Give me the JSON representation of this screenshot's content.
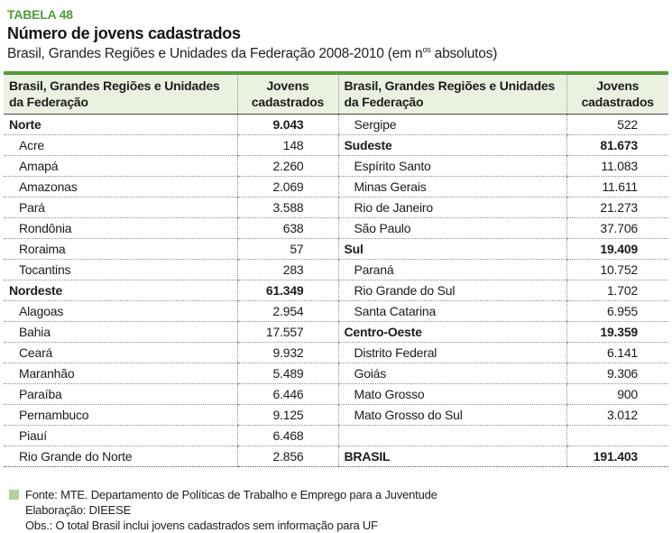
{
  "title": {
    "label": "TABELA 48",
    "heading": "Número de jovens cadastrados",
    "subtitle_prefix": "Brasil, Grandes Regiões e Unidades da Federação 2008-2010 (em n",
    "subtitle_sup": "os",
    "subtitle_suffix": " absolutos)"
  },
  "table": {
    "header": {
      "region_label": "Brasil, Grandes Regiões e Unidades da Federação",
      "value_label": "Jovens cadastrados"
    },
    "left": {
      "rows": [
        {
          "label": "Norte",
          "value": "9.043",
          "style": "region"
        },
        {
          "label": "Acre",
          "value": "148",
          "style": "state"
        },
        {
          "label": "Amapá",
          "value": "2.260",
          "style": "state"
        },
        {
          "label": "Amazonas",
          "value": "2.069",
          "style": "state"
        },
        {
          "label": "Pará",
          "value": "3.588",
          "style": "state"
        },
        {
          "label": "Rondônia",
          "value": "638",
          "style": "state"
        },
        {
          "label": "Roraima",
          "value": "57",
          "style": "state"
        },
        {
          "label": "Tocantins",
          "value": "283",
          "style": "state"
        },
        {
          "label": "Nordeste",
          "value": "61.349",
          "style": "region"
        },
        {
          "label": "Alagoas",
          "value": "2.954",
          "style": "state"
        },
        {
          "label": "Bahia",
          "value": "17.557",
          "style": "state"
        },
        {
          "label": "Ceará",
          "value": "9.932",
          "style": "state"
        },
        {
          "label": "Maranhão",
          "value": "5.489",
          "style": "state"
        },
        {
          "label": "Paraíba",
          "value": "6.446",
          "style": "state"
        },
        {
          "label": "Pernambuco",
          "value": "9.125",
          "style": "state"
        },
        {
          "label": "Piauí",
          "value": "6.468",
          "style": "state"
        },
        {
          "label": "Rio Grande do Norte",
          "value": "2.856",
          "style": "state"
        }
      ]
    },
    "right": {
      "rows": [
        {
          "label": "Sergipe",
          "value": "522",
          "style": "state"
        },
        {
          "label": "Sudeste",
          "value": "81.673",
          "style": "region"
        },
        {
          "label": "Espírito Santo",
          "value": "11.083",
          "style": "state"
        },
        {
          "label": "Minas Gerais",
          "value": "11.611",
          "style": "state"
        },
        {
          "label": "Rio de Janeiro",
          "value": "21.273",
          "style": "state"
        },
        {
          "label": "São Paulo",
          "value": "37.706",
          "style": "state"
        },
        {
          "label": "Sul",
          "value": "19.409",
          "style": "region"
        },
        {
          "label": "Paraná",
          "value": "10.752",
          "style": "state"
        },
        {
          "label": "Rio Grande do Sul",
          "value": "1.702",
          "style": "state"
        },
        {
          "label": "Santa Catarina",
          "value": "6.955",
          "style": "state"
        },
        {
          "label": "Centro-Oeste",
          "value": "19.359",
          "style": "region"
        },
        {
          "label": "Distrito Federal",
          "value": "6.141",
          "style": "state"
        },
        {
          "label": "Goiás",
          "value": "9.306",
          "style": "state"
        },
        {
          "label": "Mato Grosso",
          "value": "900",
          "style": "state"
        },
        {
          "label": "Mato Grosso do Sul",
          "value": "3.012",
          "style": "state"
        },
        {
          "label": "",
          "value": "",
          "style": "empty"
        },
        {
          "label": "BRASIL",
          "value": "191.403",
          "style": "total"
        }
      ]
    }
  },
  "footer": {
    "fonte": "Fonte: MTE. Departamento de Políticas de Trabalho e Emprego para a Juventude",
    "elaboracao": "Elaboração: DIEESE",
    "obs": "Obs.: O total Brasil inclui jovens cadastrados sem informação para UF"
  },
  "colors": {
    "accent_green": "#4f9c38",
    "header_background": "#eaf1e1",
    "legend_square_green": "#b5d09c",
    "dotted_border": "#8f8f8f"
  }
}
